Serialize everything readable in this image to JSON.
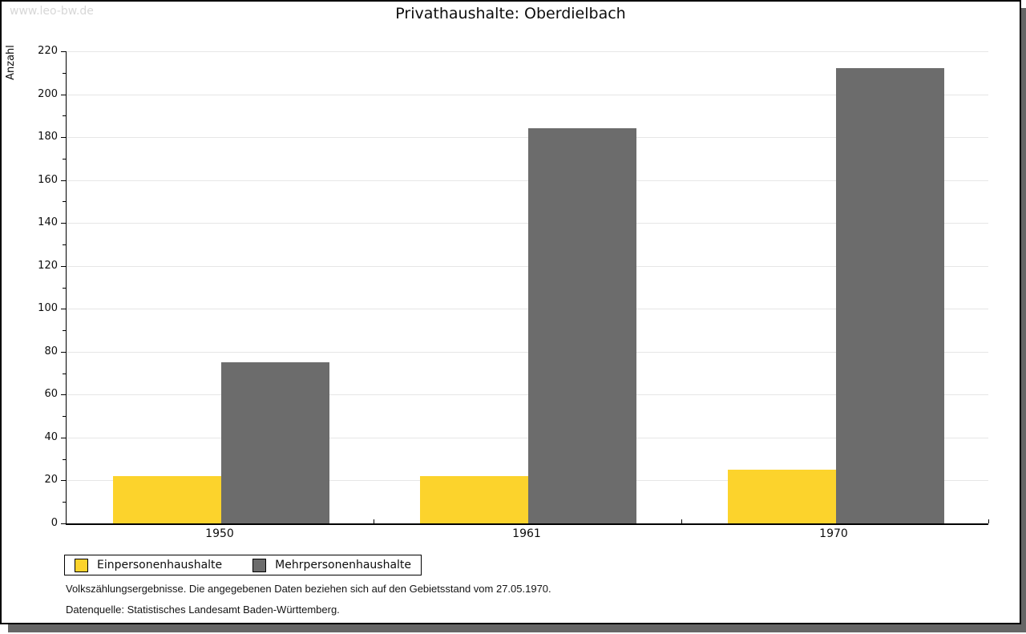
{
  "watermark": "www.leo-bw.de",
  "chart_data": {
    "type": "bar",
    "title": "Privathaushalte: Oberdielbach",
    "xlabel": "",
    "ylabel": "Anzahl",
    "categories": [
      "1950",
      "1961",
      "1970"
    ],
    "series": [
      {
        "name": "Einpersonenhaushalte",
        "color": "#FCD32C",
        "values": [
          22,
          22,
          25
        ]
      },
      {
        "name": "Mehrpersonenhaushalte",
        "color": "#6C6C6C",
        "values": [
          75,
          184,
          212
        ]
      }
    ],
    "ylim": [
      0,
      220
    ],
    "ytick_step": 20,
    "yminor_step": 10,
    "grid": true,
    "legend_position": "bottom-left"
  },
  "footer": {
    "line1": "Volkszählungsergebnisse. Die angegebenen Daten beziehen sich auf den Gebietsstand vom 27.05.1970.",
    "line2": "Datenquelle: Statistisches Landesamt Baden-Württemberg."
  },
  "colors": {
    "bar_yellow": "#FCD32C",
    "bar_gray": "#6C6C6C",
    "gridline": "#E6E6E6",
    "frame_shadow": "#666666",
    "watermark": "#D7D7D7",
    "axis": "#000000"
  }
}
